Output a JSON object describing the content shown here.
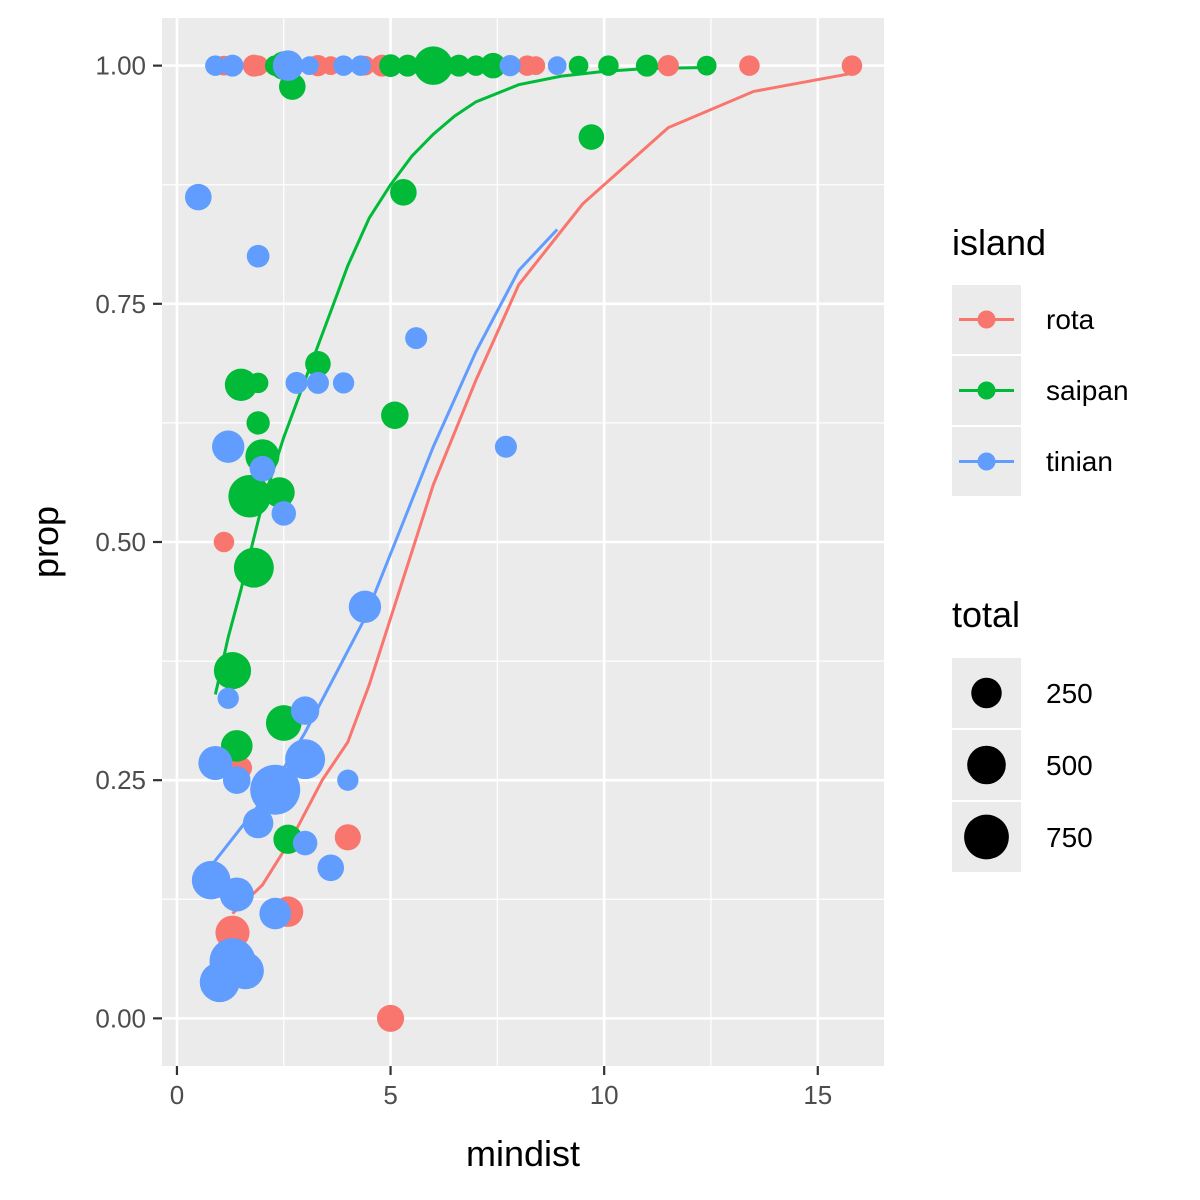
{
  "chart_data": {
    "type": "scatter",
    "xlabel": "mindist",
    "ylabel": "prop",
    "xlim": [
      -0.35,
      16.55
    ],
    "ylim": [
      -0.05,
      1.05
    ],
    "x_ticks": [
      0,
      5,
      10,
      15
    ],
    "x_tick_labels": [
      "0",
      "5",
      "10",
      "15"
    ],
    "y_ticks": [
      0,
      0.25,
      0.5,
      0.75,
      1
    ],
    "y_tick_labels": [
      "0.00",
      "0.25",
      "0.50",
      "0.75",
      "1.00"
    ],
    "grid": true,
    "legend": {
      "color_title": "island",
      "size_title": "total",
      "placement": "right",
      "size_entries": [
        {
          "label": "250",
          "value": 250
        },
        {
          "label": "500",
          "value": 500
        },
        {
          "label": "750",
          "value": 750
        }
      ]
    },
    "series": [
      {
        "name": "rota",
        "color": "#F8766D",
        "points": [
          {
            "x": 1.1,
            "y": 1.0,
            "size": 50
          },
          {
            "x": 1.8,
            "y": 1.0,
            "size": 80
          },
          {
            "x": 1.9,
            "y": 1.0,
            "size": 60
          },
          {
            "x": 3.3,
            "y": 1.0,
            "size": 70
          },
          {
            "x": 3.6,
            "y": 1.0,
            "size": 40
          },
          {
            "x": 4.4,
            "y": 1.0,
            "size": 50
          },
          {
            "x": 4.8,
            "y": 1.0,
            "size": 80
          },
          {
            "x": 6.3,
            "y": 1.0,
            "size": 50
          },
          {
            "x": 8.2,
            "y": 1.0,
            "size": 60
          },
          {
            "x": 8.4,
            "y": 1.0,
            "size": 40
          },
          {
            "x": 11.5,
            "y": 1.0,
            "size": 70
          },
          {
            "x": 13.4,
            "y": 1.0,
            "size": 60
          },
          {
            "x": 15.8,
            "y": 1.0,
            "size": 60
          },
          {
            "x": 1.1,
            "y": 0.5,
            "size": 60
          },
          {
            "x": 1.5,
            "y": 0.263,
            "size": 80
          },
          {
            "x": 1.3,
            "y": 0.09,
            "size": 350
          },
          {
            "x": 2.6,
            "y": 0.112,
            "size": 250
          },
          {
            "x": 4.0,
            "y": 0.19,
            "size": 150
          },
          {
            "x": 5.0,
            "y": 0.0,
            "size": 170
          }
        ],
        "trend": [
          {
            "x": 1.3,
            "y": 0.11
          },
          {
            "x": 2.0,
            "y": 0.14
          },
          {
            "x": 2.7,
            "y": 0.19
          },
          {
            "x": 3.4,
            "y": 0.25
          },
          {
            "x": 4.0,
            "y": 0.29
          },
          {
            "x": 4.5,
            "y": 0.35
          },
          {
            "x": 5.0,
            "y": 0.42
          },
          {
            "x": 6.0,
            "y": 0.56
          },
          {
            "x": 7.0,
            "y": 0.67
          },
          {
            "x": 8.0,
            "y": 0.77
          },
          {
            "x": 9.5,
            "y": 0.855
          },
          {
            "x": 11.5,
            "y": 0.935
          },
          {
            "x": 13.5,
            "y": 0.973
          },
          {
            "x": 15.8,
            "y": 0.992
          }
        ]
      },
      {
        "name": "saipan",
        "color": "#00BA38",
        "points": [
          {
            "x": 2.5,
            "y": 1.0,
            "size": 200
          },
          {
            "x": 2.3,
            "y": 1.0,
            "size": 60
          },
          {
            "x": 5.0,
            "y": 1.0,
            "size": 90
          },
          {
            "x": 5.4,
            "y": 1.0,
            "size": 80
          },
          {
            "x": 6.0,
            "y": 1.0,
            "size": 500
          },
          {
            "x": 6.6,
            "y": 1.0,
            "size": 80
          },
          {
            "x": 7.0,
            "y": 1.0,
            "size": 60
          },
          {
            "x": 7.4,
            "y": 1.0,
            "size": 140
          },
          {
            "x": 9.4,
            "y": 1.0,
            "size": 50
          },
          {
            "x": 10.1,
            "y": 1.0,
            "size": 60
          },
          {
            "x": 11.0,
            "y": 1.0,
            "size": 80
          },
          {
            "x": 12.4,
            "y": 1.0,
            "size": 50
          },
          {
            "x": 2.7,
            "y": 0.978,
            "size": 160
          },
          {
            "x": 9.7,
            "y": 0.925,
            "size": 140
          },
          {
            "x": 5.3,
            "y": 0.867,
            "size": 160
          },
          {
            "x": 3.3,
            "y": 0.687,
            "size": 140
          },
          {
            "x": 1.5,
            "y": 0.665,
            "size": 300
          },
          {
            "x": 1.9,
            "y": 0.667,
            "size": 60
          },
          {
            "x": 5.1,
            "y": 0.633,
            "size": 180
          },
          {
            "x": 1.9,
            "y": 0.625,
            "size": 100
          },
          {
            "x": 2.0,
            "y": 0.59,
            "size": 350
          },
          {
            "x": 2.4,
            "y": 0.552,
            "size": 250
          },
          {
            "x": 1.7,
            "y": 0.548,
            "size": 650
          },
          {
            "x": 1.8,
            "y": 0.473,
            "size": 550
          },
          {
            "x": 1.3,
            "y": 0.365,
            "size": 450
          },
          {
            "x": 1.4,
            "y": 0.286,
            "size": 280
          },
          {
            "x": 2.5,
            "y": 0.31,
            "size": 400
          },
          {
            "x": 2.6,
            "y": 0.188,
            "size": 220
          }
        ],
        "trend": [
          {
            "x": 0.9,
            "y": 0.34
          },
          {
            "x": 1.2,
            "y": 0.4
          },
          {
            "x": 1.5,
            "y": 0.45
          },
          {
            "x": 2.0,
            "y": 0.54
          },
          {
            "x": 2.5,
            "y": 0.61
          },
          {
            "x": 3.0,
            "y": 0.67
          },
          {
            "x": 3.5,
            "y": 0.73
          },
          {
            "x": 4.0,
            "y": 0.79
          },
          {
            "x": 4.5,
            "y": 0.84
          },
          {
            "x": 5.0,
            "y": 0.875
          },
          {
            "x": 5.5,
            "y": 0.905
          },
          {
            "x": 6.0,
            "y": 0.928
          },
          {
            "x": 6.5,
            "y": 0.947
          },
          {
            "x": 7.0,
            "y": 0.962
          },
          {
            "x": 8.0,
            "y": 0.98
          },
          {
            "x": 9.0,
            "y": 0.989
          },
          {
            "x": 10.0,
            "y": 0.994
          },
          {
            "x": 11.0,
            "y": 0.997
          },
          {
            "x": 12.4,
            "y": 0.998
          }
        ]
      },
      {
        "name": "tinian",
        "color": "#619CFF",
        "points": [
          {
            "x": 0.9,
            "y": 1.0,
            "size": 60
          },
          {
            "x": 1.3,
            "y": 1.0,
            "size": 80
          },
          {
            "x": 2.6,
            "y": 1.0,
            "size": 250
          },
          {
            "x": 3.1,
            "y": 1.0,
            "size": 40
          },
          {
            "x": 3.9,
            "y": 1.0,
            "size": 60
          },
          {
            "x": 4.3,
            "y": 1.0,
            "size": 60
          },
          {
            "x": 7.8,
            "y": 1.0,
            "size": 70
          },
          {
            "x": 8.9,
            "y": 1.0,
            "size": 40
          },
          {
            "x": 0.5,
            "y": 0.862,
            "size": 160
          },
          {
            "x": 1.9,
            "y": 0.8,
            "size": 90
          },
          {
            "x": 5.6,
            "y": 0.714,
            "size": 80
          },
          {
            "x": 2.8,
            "y": 0.667,
            "size": 80
          },
          {
            "x": 3.3,
            "y": 0.667,
            "size": 80
          },
          {
            "x": 3.9,
            "y": 0.667,
            "size": 70
          },
          {
            "x": 1.2,
            "y": 0.6,
            "size": 300
          },
          {
            "x": 7.7,
            "y": 0.6,
            "size": 80
          },
          {
            "x": 2.0,
            "y": 0.577,
            "size": 140
          },
          {
            "x": 2.5,
            "y": 0.53,
            "size": 120
          },
          {
            "x": 4.4,
            "y": 0.432,
            "size": 300
          },
          {
            "x": 1.2,
            "y": 0.336,
            "size": 70
          },
          {
            "x": 3.0,
            "y": 0.323,
            "size": 200
          },
          {
            "x": 0.9,
            "y": 0.268,
            "size": 350
          },
          {
            "x": 3.0,
            "y": 0.272,
            "size": 550
          },
          {
            "x": 1.4,
            "y": 0.25,
            "size": 180
          },
          {
            "x": 4.0,
            "y": 0.25,
            "size": 70
          },
          {
            "x": 2.3,
            "y": 0.24,
            "size": 1000
          },
          {
            "x": 1.9,
            "y": 0.205,
            "size": 250
          },
          {
            "x": 3.0,
            "y": 0.184,
            "size": 120
          },
          {
            "x": 3.6,
            "y": 0.158,
            "size": 160
          },
          {
            "x": 0.8,
            "y": 0.145,
            "size": 500
          },
          {
            "x": 1.4,
            "y": 0.13,
            "size": 350
          },
          {
            "x": 2.3,
            "y": 0.11,
            "size": 280
          },
          {
            "x": 1.3,
            "y": 0.06,
            "size": 800
          },
          {
            "x": 1.6,
            "y": 0.05,
            "size": 450
          },
          {
            "x": 1.0,
            "y": 0.038,
            "size": 550
          }
        ],
        "trend": [
          {
            "x": 0.8,
            "y": 0.16
          },
          {
            "x": 1.5,
            "y": 0.2
          },
          {
            "x": 2.2,
            "y": 0.24
          },
          {
            "x": 3.0,
            "y": 0.3
          },
          {
            "x": 3.7,
            "y": 0.36
          },
          {
            "x": 4.4,
            "y": 0.42
          },
          {
            "x": 5.2,
            "y": 0.51
          },
          {
            "x": 6.0,
            "y": 0.6
          },
          {
            "x": 7.0,
            "y": 0.7
          },
          {
            "x": 8.0,
            "y": 0.785
          },
          {
            "x": 8.9,
            "y": 0.828
          }
        ]
      }
    ]
  }
}
